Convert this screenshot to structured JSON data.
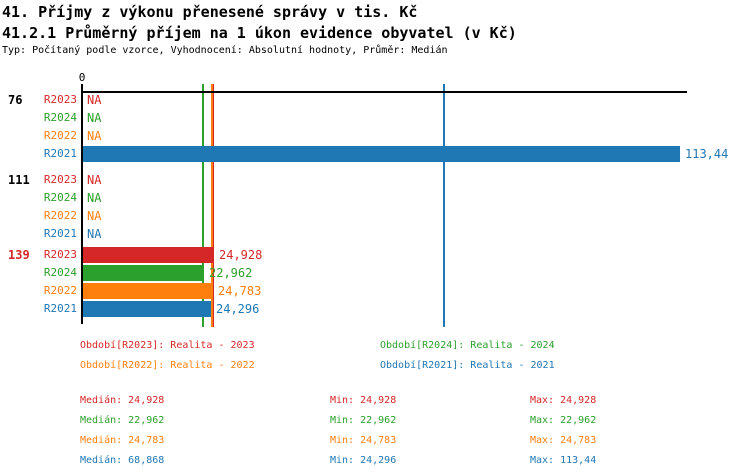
{
  "header": {
    "title": "41. Příjmy z výkonu přenesené správy v tis. Kč",
    "subtitle": "41.2.1 Průměrný příjem na 1 úkon evidence obyvatel (v Kč)",
    "meta": "Typ: Počítaný podle vzorce, Vyhodnocení: Absolutní hodnoty, Průměr: Medián"
  },
  "chart_data": {
    "type": "bar",
    "orientation": "horizontal",
    "title": "41.2.1 Průměrný příjem na 1 úkon evidence obyvatel (v Kč)",
    "origin_label": "0",
    "na_text": "NA",
    "xlim": [
      0,
      115
    ],
    "categories": [
      "76",
      "111",
      "139"
    ],
    "category_colors": [
      "#000000",
      "#000000",
      "#d62728"
    ],
    "series": [
      {
        "name": "R2023",
        "color": "#d62728",
        "values": [
          null,
          null,
          24.928
        ],
        "value_labels": [
          "NA",
          "NA",
          "24,928"
        ],
        "median": 24.928,
        "legend_text": "Období[R2023]: Realita - 2023",
        "legend_col": 0,
        "legend_row": 0,
        "median_text": "Medián: 24,928",
        "min_text": "Min: 24,928",
        "max_text": "Max: 24,928"
      },
      {
        "name": "R2024",
        "color": "#2ca02c",
        "values": [
          null,
          null,
          22.962
        ],
        "value_labels": [
          "NA",
          "NA",
          "22,962"
        ],
        "median": 22.962,
        "legend_text": "Období[R2024]: Realita - 2024",
        "legend_col": 1,
        "legend_row": 0,
        "median_text": "Medián: 22,962",
        "min_text": "Min: 22,962",
        "max_text": "Max: 22,962"
      },
      {
        "name": "R2022",
        "color": "#ff7f0e",
        "values": [
          null,
          null,
          24.783
        ],
        "value_labels": [
          "NA",
          "NA",
          "24,783"
        ],
        "median": 24.783,
        "legend_text": "Období[R2022]: Realita - 2022",
        "legend_col": 0,
        "legend_row": 1,
        "median_text": "Medián: 24,783",
        "min_text": "Min: 24,783",
        "max_text": "Max: 24,783"
      },
      {
        "name": "R2021",
        "color": "#1f77b4",
        "values": [
          113.44,
          null,
          24.296
        ],
        "value_labels": [
          "113,44",
          "NA",
          "24,296"
        ],
        "median": 68.868,
        "legend_text": "Období[R2021]: Realita - 2021",
        "legend_col": 1,
        "legend_row": 1,
        "median_text": "Medián: 68,868",
        "min_text": "Min: 24,296",
        "max_text": "Max: 113,44"
      }
    ]
  }
}
